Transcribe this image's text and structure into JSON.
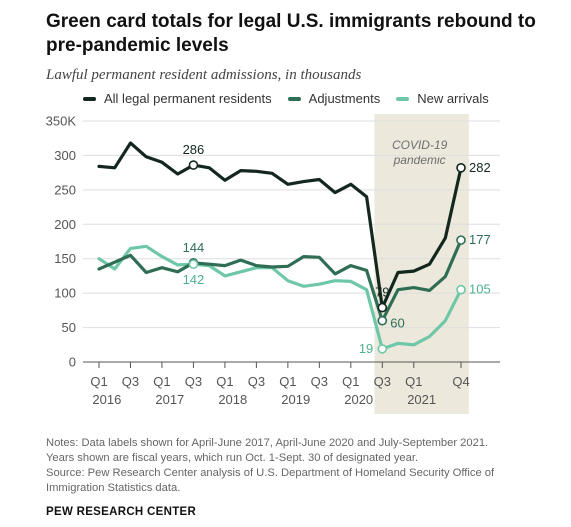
{
  "title": "Green card totals for legal U.S. immigrants rebound to pre-pandemic levels",
  "subtitle": "Lawful permanent resident admissions, in thousands",
  "notes": [
    "Notes: Data labels shown for April-June 2017, April-June 2020 and July-September 2021.",
    "Years shown are fiscal years, which run Oct. 1-Sept. 30 of designated year.",
    "Source: Pew Research Center analysis of U.S. Department of Homeland Security Office of",
    "Immigration Statistics data."
  ],
  "source_org": "PEW RESEARCH CENTER",
  "chart_data": {
    "type": "line",
    "ylim": [
      0,
      350
    ],
    "y_ticks": [
      "0",
      "50",
      "100",
      "150",
      "200",
      "250",
      "300",
      "350K"
    ],
    "x_tick_labels": [
      "Q1",
      "Q3",
      "Q1",
      "Q3",
      "Q1",
      "Q3",
      "Q1",
      "Q3",
      "Q1",
      "Q3",
      "Q1",
      "Q4"
    ],
    "x_tick_index": [
      0,
      2,
      4,
      6,
      8,
      10,
      12,
      14,
      16,
      18,
      20,
      23
    ],
    "year_labels": [
      "2016",
      "2017",
      "2018",
      "2019",
      "2020",
      "2021"
    ],
    "year_label_index": [
      0.5,
      4.5,
      8.5,
      12.5,
      16.5,
      20.5
    ],
    "shaded_region": {
      "label_line1": "COVID-19",
      "label_line2": "pandemic",
      "start_index": 17.5,
      "end_index": 23.5,
      "color": "#ece9dc"
    },
    "series": [
      {
        "name": "All legal permanent residents",
        "color": "#13271f",
        "values": [
          284,
          282,
          318,
          298,
          290,
          273,
          286,
          282,
          264,
          278,
          277,
          274,
          258,
          262,
          265,
          246,
          258,
          240,
          79,
          130,
          132,
          142,
          180,
          282
        ],
        "labels": [
          {
            "index": 6,
            "text": "286"
          },
          {
            "index": 18,
            "text": "79"
          },
          {
            "index": 23,
            "text": "282"
          }
        ]
      },
      {
        "name": "Adjustments",
        "color": "#2f6e55",
        "values": [
          135,
          145,
          155,
          130,
          137,
          131,
          144,
          142,
          140,
          148,
          140,
          138,
          139,
          153,
          152,
          128,
          140,
          133,
          60,
          105,
          108,
          104,
          124,
          177
        ],
        "labels": [
          {
            "index": 6,
            "text": "144"
          },
          {
            "index": 18,
            "text": "60"
          },
          {
            "index": 23,
            "text": "177"
          }
        ]
      },
      {
        "name": "New arrivals",
        "color": "#6ec7a6",
        "values": [
          150,
          135,
          165,
          168,
          153,
          141,
          142,
          140,
          125,
          131,
          137,
          137,
          118,
          110,
          113,
          118,
          117,
          105,
          19,
          27,
          25,
          37,
          60,
          105
        ],
        "labels": [
          {
            "index": 6,
            "text": "142"
          },
          {
            "index": 18,
            "text": "19"
          },
          {
            "index": 23,
            "text": "105"
          }
        ]
      }
    ]
  }
}
